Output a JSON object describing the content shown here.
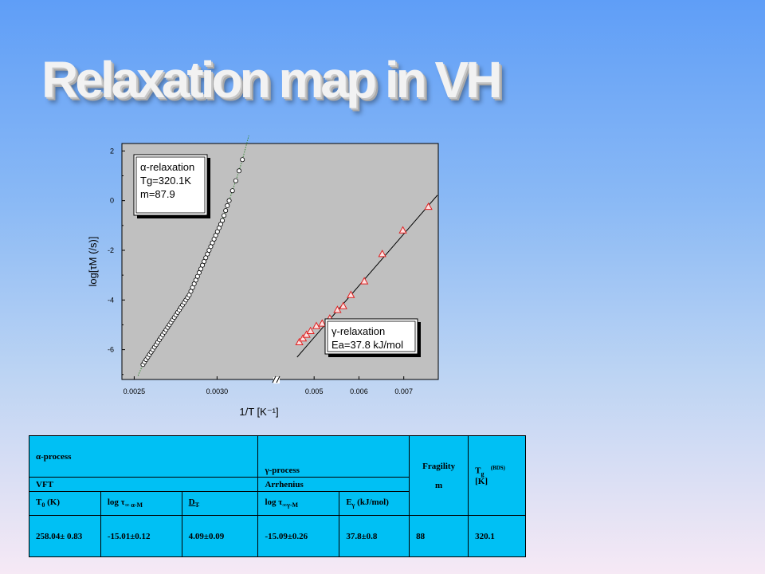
{
  "slide": {
    "title": "Relaxation map in VH"
  },
  "chart_data": {
    "type": "scatter",
    "ylabel": "log[τM (/s)]",
    "xlabel": "1/T  [K⁻¹]",
    "ylim": [
      -7.2,
      2.3
    ],
    "y_ticks": [
      2,
      0,
      -2,
      -4,
      -6
    ],
    "axis_break": true,
    "segments": [
      {
        "name": "alpha",
        "xlim": [
          0.00245,
          0.00333
        ],
        "x_ticks": [
          0.0025,
          0.003
        ],
        "x_tick_labels": [
          "0.0025",
          "0.0030"
        ]
      },
      {
        "name": "gamma",
        "xlim": [
          0.00425,
          0.00777
        ],
        "x_ticks": [
          0.005,
          0.006,
          0.007
        ],
        "x_tick_labels": [
          "0.005",
          "0.006",
          "0.007"
        ]
      }
    ],
    "series": [
      {
        "symbol": "circle",
        "color": "#000000",
        "x": [
          0.002553,
          0.002562,
          0.002572,
          0.002582,
          0.002592,
          0.002602,
          0.002612,
          0.002622,
          0.002632,
          0.002642,
          0.002652,
          0.002662,
          0.002672,
          0.002682,
          0.002692,
          0.002702,
          0.002712,
          0.002722,
          0.002732,
          0.002742,
          0.002752,
          0.002762,
          0.002772,
          0.002782,
          0.002792,
          0.002802,
          0.002812,
          0.002822,
          0.002832,
          0.002842,
          0.002852,
          0.002862,
          0.002872,
          0.002882,
          0.002892,
          0.002902,
          0.002912,
          0.002922,
          0.002932,
          0.002942,
          0.002952,
          0.002962,
          0.002972,
          0.002982,
          0.002992,
          0.003002,
          0.003012,
          0.003022,
          0.003032,
          0.003042,
          0.003052,
          0.003062,
          0.003073,
          0.003093,
          0.003113,
          0.003133,
          0.003153
        ],
        "y": [
          -6.6,
          -6.5,
          -6.4,
          -6.3,
          -6.2,
          -6.1,
          -6.0,
          -5.9,
          -5.8,
          -5.7,
          -5.6,
          -5.5,
          -5.4,
          -5.3,
          -5.2,
          -5.1,
          -5.0,
          -4.9,
          -4.8,
          -4.7,
          -4.6,
          -4.5,
          -4.4,
          -4.3,
          -4.2,
          -4.1,
          -4.0,
          -3.9,
          -3.8,
          -3.65,
          -3.5,
          -3.35,
          -3.2,
          -3.05,
          -2.9,
          -2.75,
          -2.6,
          -2.45,
          -2.3,
          -2.15,
          -2.0,
          -1.85,
          -1.7,
          -1.55,
          -1.4,
          -1.25,
          -1.1,
          -0.95,
          -0.8,
          -0.6,
          -0.4,
          -0.2,
          0.0,
          0.4,
          0.8,
          1.2,
          1.65
        ]
      },
      {
        "symbol": "triangle",
        "color": "#e02020",
        "x": [
          0.00467,
          0.00475,
          0.00483,
          0.00492,
          0.00505,
          0.00518,
          0.00535,
          0.00552,
          0.00565,
          0.00582,
          0.00612,
          0.00652,
          0.00698,
          0.00755
        ],
        "y": [
          -5.7,
          -5.55,
          -5.4,
          -5.25,
          -5.05,
          -4.95,
          -4.75,
          -4.4,
          -4.25,
          -3.8,
          -3.25,
          -2.15,
          -1.2,
          -0.25
        ]
      }
    ],
    "annotations": [
      {
        "lines": [
          "α-relaxation",
          "Tg=320.1K",
          "m=87.9"
        ]
      },
      {
        "lines": [
          "γ-relaxation",
          "Ea=37.8 kJ/mol"
        ]
      }
    ]
  },
  "table": {
    "alpha_process": "α-process",
    "gamma_process": "γ-process",
    "fragility_label": "Fragility",
    "fragility_symbol": "m",
    "tg_symbol": "T",
    "tg_sub": "g",
    "tg_note": "(BDS)",
    "tg_unit": "[K]",
    "vft_label": "VFT",
    "arrhenius_label": "Arrhenius",
    "h_t0_main": "T",
    "h_t0_sub": "0",
    "h_t0_unit": " (K)",
    "h_logtau_a_main": "log τ",
    "h_logtau_a_sub": "∞ α-M",
    "h_dt_main": "D",
    "h_dt_sub": "T",
    "h_logtau_g_main": "log τ",
    "h_logtau_g_sub": "∞γ-M",
    "h_eg_main": "E",
    "h_eg_sub": "γ",
    "h_eg_unit": " (kJ/mol)",
    "row": [
      "258.04± 0.83",
      "-15.01±0.12",
      "4.09±0.09",
      "-15.09±0.26",
      "37.8±0.8",
      "88",
      "320.1"
    ]
  }
}
